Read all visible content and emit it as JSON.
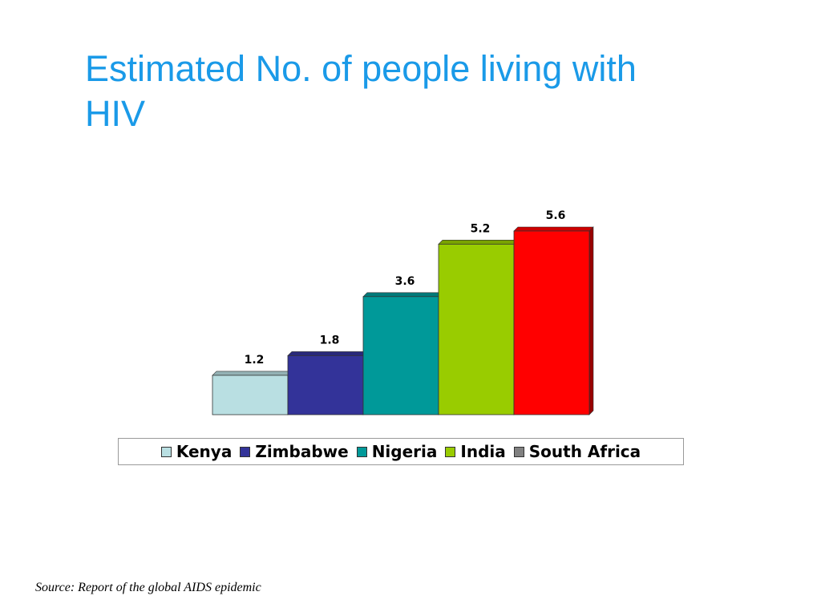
{
  "slide": {
    "title": "Estimated No. of people living with HIV",
    "source": "Source: Report of the global AIDS epidemic"
  },
  "chart_data": {
    "type": "bar",
    "title": "",
    "xlabel": "",
    "ylabel": "",
    "categories": [
      "Kenya",
      "Zimbabwe",
      "Nigeria",
      "India",
      "South Africa"
    ],
    "values": [
      1.2,
      1.8,
      3.6,
      5.2,
      5.6
    ],
    "value_labels": [
      "1.2",
      "1.8",
      "3.6",
      "5.2",
      "5.6"
    ],
    "colors": [
      "#b9dfe2",
      "#333399",
      "#009999",
      "#99cc00",
      "#ff0000"
    ],
    "legend_colors": [
      "#b9dfe2",
      "#333399",
      "#009999",
      "#99cc00",
      "#808080"
    ],
    "ylim": [
      0,
      5.6
    ],
    "grid": false,
    "legend_position": "bottom"
  }
}
